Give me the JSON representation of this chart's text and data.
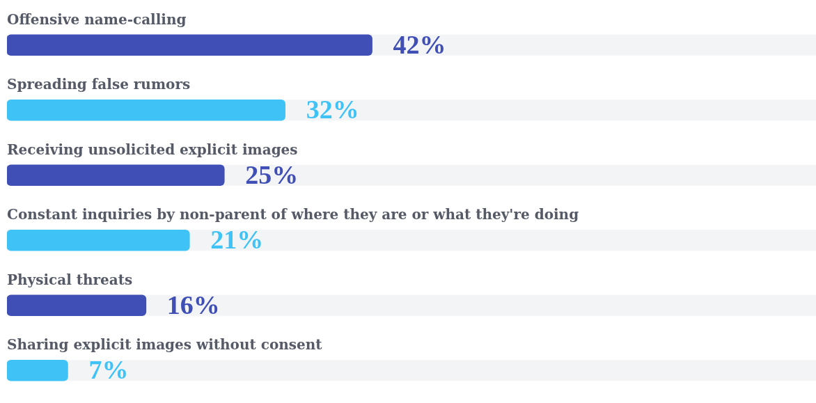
{
  "chart_data": {
    "type": "bar",
    "orientation": "horizontal",
    "categories": [
      "Offensive name-calling",
      "Spreading false rumors",
      "Receiving unsolicited explicit images",
      "Constant inquiries by non-parent of where they are or what they're doing",
      "Physical threats",
      "Sharing explicit images without consent"
    ],
    "values": [
      42,
      32,
      25,
      21,
      16,
      7
    ],
    "colors": [
      "#3f4fb5",
      "#3fc3f7",
      "#3f4fb5",
      "#3fc3f7",
      "#3f4fb5",
      "#3fc3f7"
    ],
    "value_labels": [
      "42%",
      "32%",
      "25%",
      "21%",
      "16%",
      "7%"
    ],
    "tick_labels": false,
    "legend": false
  }
}
